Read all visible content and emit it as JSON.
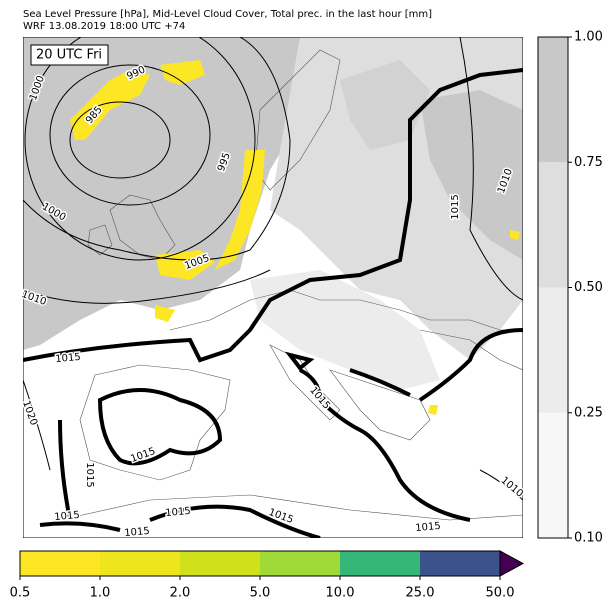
{
  "title": "Sea Level Pressure [hPa], Mid-Level Cloud Cover, Total prec. in the last hour [mm]",
  "subtitle": "WRF 13.08.2019 18:00 UTC +74",
  "time_label": "20 UTC Fri",
  "contour_labels": [
    "990",
    "985",
    "1000",
    "995",
    "1000",
    "1005",
    "1010",
    "1015",
    "1015",
    "1010",
    "1020",
    "1015",
    "1015",
    "1015",
    "1015",
    "1015",
    "1015",
    "1010",
    "1015",
    "1015"
  ],
  "cloud_colorbar": {
    "colors": [
      "#f7f7f7",
      "#ececec",
      "#dedede",
      "#c8c8c8"
    ],
    "ticks": [
      {
        "value": 0.1,
        "label": "0.10"
      },
      {
        "value": 0.25,
        "label": "0.25"
      },
      {
        "value": 0.5,
        "label": "0.50"
      },
      {
        "value": 0.75,
        "label": "0.75"
      },
      {
        "value": 1,
        "label": "1.00"
      }
    ]
  },
  "precip_colorbar": {
    "colors": [
      "#fde725",
      "#efe51c",
      "#d0e11c",
      "#a0da39",
      "#35b779",
      "#3b528b"
    ],
    "extend_color": "#440154",
    "ticks": [
      {
        "value": 0.5,
        "label": "0.5"
      },
      {
        "value": 1,
        "label": "1.0"
      },
      {
        "value": 2,
        "label": "2.0"
      },
      {
        "value": 5,
        "label": "5.0"
      },
      {
        "value": 10,
        "label": "10.0"
      },
      {
        "value": 25,
        "label": "25.0"
      },
      {
        "value": 50,
        "label": "50.0"
      }
    ]
  }
}
